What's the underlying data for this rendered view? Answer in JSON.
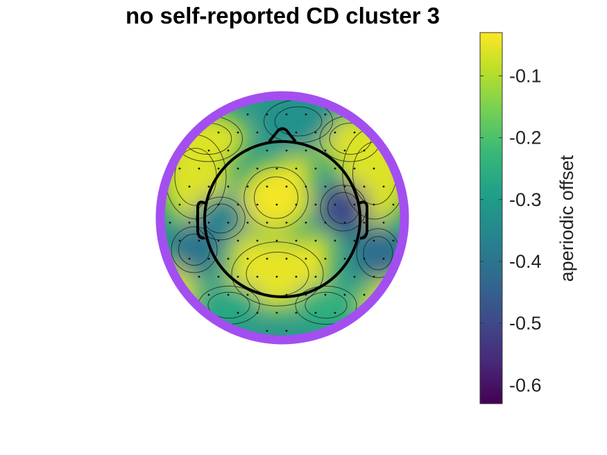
{
  "chart_data": {
    "type": "heatmap",
    "subtype": "eeg-topoplot",
    "title": "no self-reported CD cluster 3",
    "colorbar": {
      "label": "aperiodic offset",
      "colormap": "viridis",
      "limits": [
        -0.63,
        -0.03
      ],
      "ticks": [
        -0.1,
        -0.2,
        -0.3,
        -0.4,
        -0.5,
        -0.6
      ],
      "tick_labels": [
        "-0.1",
        "-0.2",
        "-0.3",
        "-0.4",
        "-0.5",
        "-0.6"
      ]
    },
    "outline_color": "#a34ff0",
    "head_color": "#000000",
    "hotspots": [
      {
        "region": "center-top",
        "value": -0.04
      },
      {
        "region": "center-posterior",
        "value": -0.05
      },
      {
        "region": "left-frontal",
        "value": -0.06
      },
      {
        "region": "right-frontal",
        "value": -0.06
      },
      {
        "region": "frontal-midline",
        "value": -0.33
      },
      {
        "region": "left-temporal",
        "value": -0.36
      },
      {
        "region": "left-inferior",
        "value": -0.4
      },
      {
        "region": "right-temporal",
        "value": -0.5
      },
      {
        "region": "right-inferior",
        "value": -0.42
      },
      {
        "region": "left-occipital",
        "value": -0.27
      },
      {
        "region": "right-occipital",
        "value": -0.25
      }
    ]
  }
}
